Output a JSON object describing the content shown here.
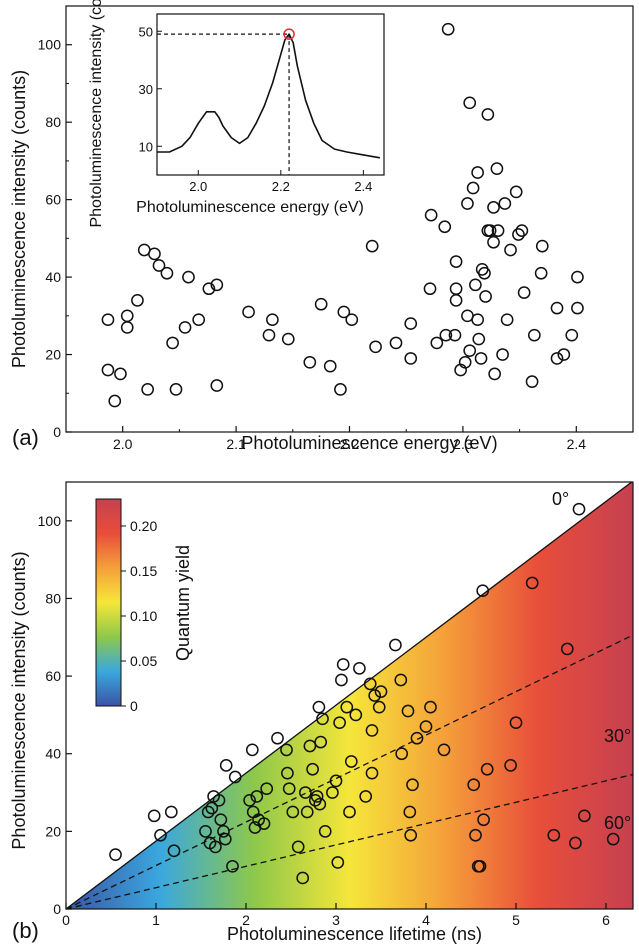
{
  "colors": {
    "ink": "#111111",
    "marker_highlight": "#e03030"
  },
  "chart_data": [
    {
      "type": "scatter",
      "panel": "(a)",
      "xlabel": "Photoluminescence energy (eV)",
      "ylabel": "Photoluminescence intensity (counts)",
      "xlim": [
        1.95,
        2.45
      ],
      "ylim": [
        0,
        110
      ],
      "xticks": [
        "2.0",
        "2.1",
        "2.2",
        "2.3",
        "2.4"
      ],
      "yticks": [
        "0",
        "20",
        "40",
        "60",
        "80",
        "100"
      ],
      "points": [
        [
          1.987,
          29
        ],
        [
          1.987,
          16
        ],
        [
          1.993,
          8
        ],
        [
          1.998,
          15
        ],
        [
          2.004,
          30
        ],
        [
          2.004,
          27
        ],
        [
          2.013,
          34
        ],
        [
          2.019,
          47
        ],
        [
          2.022,
          11
        ],
        [
          2.028,
          46
        ],
        [
          2.032,
          43
        ],
        [
          2.039,
          41
        ],
        [
          2.044,
          23
        ],
        [
          2.047,
          11
        ],
        [
          2.055,
          27
        ],
        [
          2.058,
          40
        ],
        [
          2.067,
          29
        ],
        [
          2.076,
          37
        ],
        [
          2.083,
          38
        ],
        [
          2.083,
          12
        ],
        [
          2.111,
          31
        ],
        [
          2.129,
          25
        ],
        [
          2.132,
          29
        ],
        [
          2.146,
          24
        ],
        [
          2.165,
          18
        ],
        [
          2.175,
          33
        ],
        [
          2.183,
          17
        ],
        [
          2.192,
          11
        ],
        [
          2.195,
          31
        ],
        [
          2.202,
          29
        ],
        [
          2.22,
          48
        ],
        [
          2.223,
          22
        ],
        [
          2.241,
          23
        ],
        [
          2.254,
          28
        ],
        [
          2.254,
          19
        ],
        [
          2.271,
          37
        ],
        [
          2.272,
          56
        ],
        [
          2.277,
          23
        ],
        [
          2.284,
          53
        ],
        [
          2.285,
          25
        ],
        [
          2.287,
          104
        ],
        [
          2.293,
          25
        ],
        [
          2.294,
          34
        ],
        [
          2.294,
          37
        ],
        [
          2.294,
          44
        ],
        [
          2.298,
          16
        ],
        [
          2.302,
          18
        ],
        [
          2.304,
          59
        ],
        [
          2.304,
          30
        ],
        [
          2.306,
          85
        ],
        [
          2.306,
          21
        ],
        [
          2.309,
          63
        ],
        [
          2.311,
          38
        ],
        [
          2.313,
          67
        ],
        [
          2.313,
          29
        ],
        [
          2.314,
          24
        ],
        [
          2.316,
          19
        ],
        [
          2.317,
          42
        ],
        [
          2.319,
          41
        ],
        [
          2.32,
          35
        ],
        [
          2.322,
          82
        ],
        [
          2.322,
          52
        ],
        [
          2.324,
          52
        ],
        [
          2.327,
          49
        ],
        [
          2.327,
          58
        ],
        [
          2.328,
          15
        ],
        [
          2.33,
          68
        ],
        [
          2.331,
          52
        ],
        [
          2.335,
          20
        ],
        [
          2.337,
          59
        ],
        [
          2.339,
          29
        ],
        [
          2.342,
          47
        ],
        [
          2.347,
          62
        ],
        [
          2.349,
          51
        ],
        [
          2.352,
          52
        ],
        [
          2.354,
          36
        ],
        [
          2.361,
          13
        ],
        [
          2.363,
          25
        ],
        [
          2.369,
          41
        ],
        [
          2.37,
          48
        ],
        [
          2.383,
          32
        ],
        [
          2.383,
          19
        ],
        [
          2.389,
          20
        ],
        [
          2.396,
          25
        ],
        [
          2.401,
          40
        ],
        [
          2.401,
          32
        ]
      ],
      "inset": {
        "type": "line",
        "xlabel": "Photoluminescence energy (eV)",
        "ylabel": "Photoluminescence intensity (counts)",
        "xlim": [
          1.9,
          2.45
        ],
        "ylim": [
          0,
          56
        ],
        "xticks": [
          "2.0",
          "2.2",
          "2.4"
        ],
        "yticks": [
          "10",
          "30",
          "50"
        ],
        "peak": [
          2.22,
          49
        ],
        "x": [
          1.9,
          1.93,
          1.96,
          1.98,
          2.0,
          2.02,
          2.04,
          2.05,
          2.06,
          2.08,
          2.1,
          2.12,
          2.14,
          2.16,
          2.18,
          2.2,
          2.21,
          2.22,
          2.23,
          2.24,
          2.26,
          2.28,
          2.3,
          2.33,
          2.36,
          2.4,
          2.44
        ],
        "y": [
          8,
          8,
          10,
          13,
          18,
          22,
          22,
          20,
          17,
          13,
          11,
          13,
          18,
          24,
          32,
          42,
          47,
          49,
          46,
          38,
          26,
          18,
          12,
          9,
          8,
          7,
          6
        ]
      }
    },
    {
      "type": "scatter",
      "panel": "(b)",
      "xlabel": "Photoluminescence lifetime (ns)",
      "ylabel": "Photoluminescence intensity (counts)",
      "xlim": [
        0,
        6.3
      ],
      "ylim": [
        0,
        110
      ],
      "xticks": [
        "0",
        "1",
        "2",
        "3",
        "4",
        "5",
        "6"
      ],
      "yticks": [
        "0",
        "20",
        "40",
        "60",
        "80",
        "100"
      ],
      "colorbar": {
        "label": "Quantum yield",
        "range": [
          0,
          0.23
        ],
        "ticks": [
          "0",
          "0.05",
          "0.10",
          "0.15",
          "0.20"
        ],
        "colors": [
          "#3a54a4",
          "#3aa8de",
          "#8ec84a",
          "#f5e63a",
          "#f5a03a",
          "#e84e3a",
          "#c64050"
        ]
      },
      "line_labels": [
        "0°",
        "30°",
        "60°"
      ],
      "line_slopes": [
        17.5,
        11.2,
        5.5
      ],
      "points": [
        [
          0.55,
          14
        ],
        [
          0.98,
          24
        ],
        [
          1.05,
          19
        ],
        [
          1.17,
          25
        ],
        [
          1.2,
          15
        ],
        [
          1.55,
          20
        ],
        [
          1.58,
          25
        ],
        [
          1.6,
          17
        ],
        [
          1.62,
          26
        ],
        [
          1.64,
          29
        ],
        [
          1.66,
          16
        ],
        [
          1.7,
          28
        ],
        [
          1.72,
          23
        ],
        [
          1.75,
          20
        ],
        [
          1.77,
          18
        ],
        [
          1.78,
          37
        ],
        [
          1.85,
          11
        ],
        [
          1.88,
          34
        ],
        [
          2.04,
          28
        ],
        [
          2.07,
          41
        ],
        [
          2.08,
          25
        ],
        [
          2.1,
          21
        ],
        [
          2.12,
          29
        ],
        [
          2.14,
          23
        ],
        [
          2.2,
          22
        ],
        [
          2.23,
          31
        ],
        [
          2.35,
          44
        ],
        [
          2.45,
          41
        ],
        [
          2.46,
          35
        ],
        [
          2.48,
          31
        ],
        [
          2.52,
          25
        ],
        [
          2.58,
          16
        ],
        [
          2.63,
          8
        ],
        [
          2.66,
          30
        ],
        [
          2.68,
          25
        ],
        [
          2.71,
          42
        ],
        [
          2.74,
          36
        ],
        [
          2.77,
          28
        ],
        [
          2.79,
          29
        ],
        [
          2.81,
          52
        ],
        [
          2.82,
          27
        ],
        [
          2.83,
          43
        ],
        [
          2.85,
          49
        ],
        [
          2.88,
          20
        ],
        [
          2.96,
          30
        ],
        [
          3.0,
          33
        ],
        [
          3.02,
          12
        ],
        [
          3.04,
          48
        ],
        [
          3.06,
          59
        ],
        [
          3.08,
          63
        ],
        [
          3.12,
          52
        ],
        [
          3.15,
          25
        ],
        [
          3.17,
          38
        ],
        [
          3.22,
          50
        ],
        [
          3.26,
          62
        ],
        [
          3.33,
          29
        ],
        [
          3.38,
          58
        ],
        [
          3.4,
          46
        ],
        [
          3.4,
          35
        ],
        [
          3.43,
          55
        ],
        [
          3.48,
          52
        ],
        [
          3.5,
          56
        ],
        [
          3.66,
          68
        ],
        [
          3.72,
          59
        ],
        [
          3.73,
          40
        ],
        [
          3.8,
          51
        ],
        [
          3.82,
          25
        ],
        [
          3.83,
          19
        ],
        [
          3.85,
          32
        ],
        [
          3.9,
          44
        ],
        [
          4.0,
          47
        ],
        [
          4.05,
          52
        ],
        [
          4.2,
          41
        ],
        [
          4.53,
          32
        ],
        [
          4.55,
          19
        ],
        [
          4.58,
          11
        ],
        [
          4.6,
          11
        ],
        [
          4.63,
          82
        ],
        [
          4.64,
          23
        ],
        [
          4.68,
          36
        ],
        [
          4.94,
          37
        ],
        [
          5.0,
          48
        ],
        [
          5.18,
          84
        ],
        [
          5.42,
          19
        ],
        [
          5.57,
          67
        ],
        [
          5.66,
          17
        ],
        [
          5.7,
          103
        ],
        [
          5.76,
          24
        ],
        [
          6.08,
          18
        ]
      ]
    }
  ]
}
